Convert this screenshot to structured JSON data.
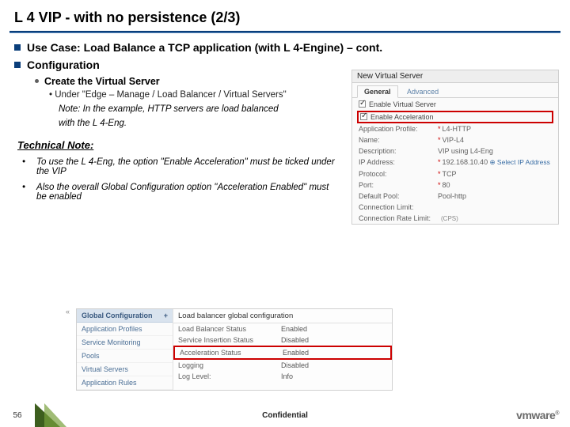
{
  "title": "L 4 VIP - with no persistence (2/3)",
  "section1": "Use Case: Load Balance a TCP application (with L 4-Engine) – cont.",
  "section2": "Configuration",
  "create_vs": "Create the Virtual Server",
  "under_line": "Under \"Edge – Manage /  Load Balancer / Virtual Servers\"",
  "note1": "Note: In the example, HTTP servers are load balanced",
  "note2": "with the L 4-Eng.",
  "tech_note_hdr": "Technical Note:",
  "tn1": "To use the L 4-Eng, the option \"Enable Acceleration\" must be ticked under the VIP",
  "tn2": "Also the overall Global Configuration option \"Acceleration Enabled\" must be enabled",
  "right": {
    "title": "New Virtual Server",
    "tab1": "General",
    "tab2": "Advanced",
    "chk_enable_vs": "Enable Virtual Server",
    "chk_enable_accel": "Enable Acceleration",
    "rows": [
      {
        "k": "Application Profile:",
        "v": "L4-HTTP",
        "star": true
      },
      {
        "k": "Name:",
        "v": "VIP-L4",
        "star": true
      },
      {
        "k": "Description:",
        "v": "VIP using L4-Eng"
      },
      {
        "k": "IP Address:",
        "v": "192.168.10.40",
        "star": true,
        "selip": true
      },
      {
        "k": "Protocol:",
        "v": "TCP",
        "star": true
      },
      {
        "k": "Port:",
        "v": "80",
        "star": true
      },
      {
        "k": "Default Pool:",
        "v": "Pool-http"
      },
      {
        "k": "Connection Limit:",
        "v": ""
      },
      {
        "k": "Connection Rate Limit:",
        "v": "",
        "cps": "(CPS)"
      }
    ],
    "selip_label": "Select IP Address"
  },
  "bottom": {
    "left_hdr": "Global Configuration",
    "left_items": [
      "Application Profiles",
      "Service Monitoring",
      "Pools",
      "Virtual Servers",
      "Application Rules"
    ],
    "right_title": "Load balancer global configuration",
    "rows": [
      {
        "k": "Load Balancer Status",
        "v": "Enabled"
      },
      {
        "k": "Service Insertion Status",
        "v": "Disabled"
      },
      {
        "k": "Acceleration Status",
        "v": "Enabled",
        "hl": true
      },
      {
        "k": "Logging",
        "v": "Disabled"
      },
      {
        "k": "Log Level:",
        "v": "Info"
      }
    ]
  },
  "footer": {
    "page": "56",
    "conf": "Confidential",
    "logo": "vmware"
  }
}
